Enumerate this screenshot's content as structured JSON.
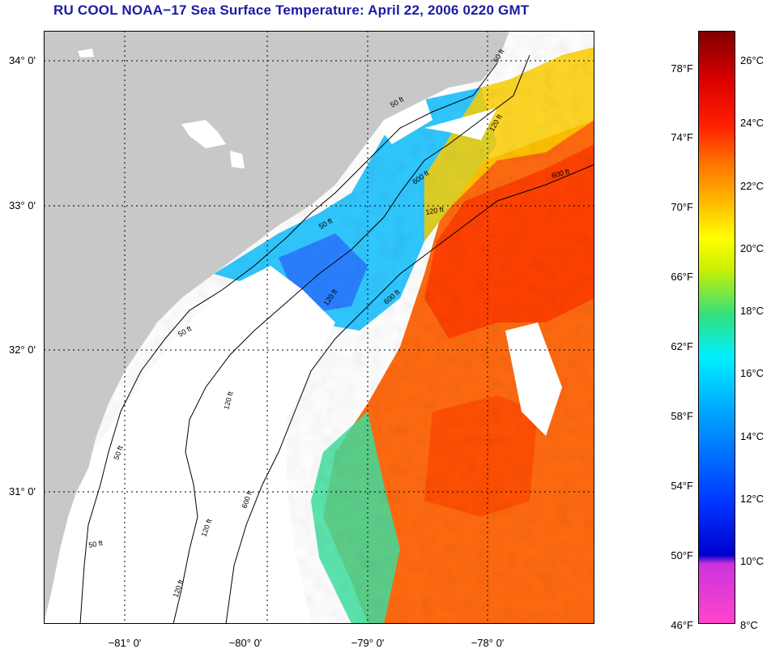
{
  "title": "RU COOL  NOAA−17  Sea Surface Temperature:  April 22, 2006 0220 GMT",
  "lat_labels": [
    "34° 0'",
    "33° 0'",
    "32° 0'",
    "31° 0'"
  ],
  "lon_labels": [
    "−81° 0'",
    "−80° 0'",
    "−79° 0'",
    "−78° 0'"
  ],
  "contour_labels": [
    "50 ft",
    "120 ft",
    "600 ft",
    "50 ft",
    "120 ft",
    "600 ft",
    "50 ft",
    "120 ft",
    "600 ft",
    "120 ft",
    "50 ft",
    "50 ft",
    "120 ft",
    "600 ft",
    "50 ft",
    "120 ft"
  ],
  "colorbar": {
    "fahrenheit": [
      "78°F",
      "74°F",
      "70°F",
      "66°F",
      "62°F",
      "58°F",
      "54°F",
      "50°F",
      "46°F"
    ],
    "celsius": [
      "26°C",
      "24°C",
      "22°C",
      "20°C",
      "18°C",
      "16°C",
      "14°C",
      "12°C",
      "10°C",
      "8°C"
    ]
  },
  "colors": {
    "land": "#c8c8c8",
    "no_data": "#ffffff",
    "warm": "#ff5a00",
    "mid": "#ffd000",
    "cool": "#30d8ff",
    "cold": "#1060ff",
    "title": "#1a1aa6"
  }
}
